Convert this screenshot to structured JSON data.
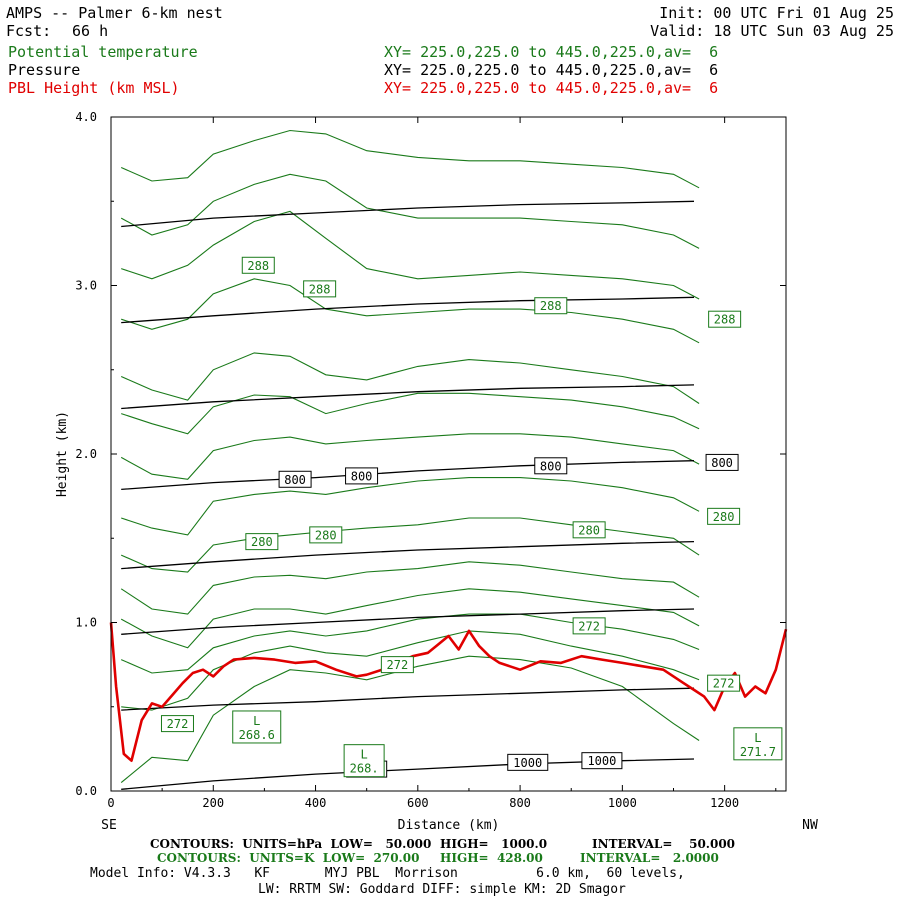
{
  "header": {
    "title": "AMPS -- Palmer 6-km nest",
    "fcst_label": "Fcst:",
    "fcst_value": "66 h",
    "init": "Init: 00 UTC Fri 01 Aug 25",
    "valid": "Valid: 18 UTC Sun 03 Aug 25",
    "fields": [
      {
        "name": "Potential temperature",
        "xy": "XY= 225.0,225.0 to 445.0,225.0,av=  6",
        "color": "#1a7a1a"
      },
      {
        "name": "Pressure",
        "xy": "XY= 225.0,225.0 to 445.0,225.0,av=  6",
        "color": "#000000"
      },
      {
        "name": "PBL Height (km MSL)",
        "xy": "XY= 225.0,225.0 to 445.0,225.0,av=  6",
        "color": "#e00000"
      }
    ]
  },
  "chart_data": {
    "type": "line",
    "xlabel": "Distance (km)",
    "ylabel": "Height (km)",
    "xlim": [
      0,
      1320
    ],
    "ylim": [
      0,
      4
    ],
    "x_ticks": [
      0,
      200,
      400,
      600,
      800,
      1000,
      1200
    ],
    "x_tick_labels": [
      "0",
      "200",
      "400",
      "600",
      "800",
      "1000",
      "1200"
    ],
    "y_ticks": [
      0,
      1,
      2,
      3,
      4
    ],
    "y_tick_labels": [
      "0.0",
      "1.0",
      "2.0",
      "3.0",
      "4.0"
    ],
    "left_end_label": "SE",
    "right_end_label": "NW",
    "pressure_contours": {
      "color": "#000000",
      "x": [
        20,
        200,
        400,
        600,
        800,
        1000,
        1140
      ],
      "lines": [
        {
          "label": "1000",
          "y": [
            0.01,
            0.06,
            0.1,
            0.13,
            0.16,
            0.18,
            0.19
          ]
        },
        {
          "y": [
            0.48,
            0.51,
            0.53,
            0.56,
            0.58,
            0.6,
            0.61
          ]
        },
        {
          "y": [
            0.93,
            0.97,
            1.0,
            1.03,
            1.05,
            1.07,
            1.08
          ]
        },
        {
          "y": [
            1.32,
            1.36,
            1.4,
            1.43,
            1.45,
            1.47,
            1.48
          ]
        },
        {
          "label": "800",
          "y": [
            1.79,
            1.83,
            1.86,
            1.9,
            1.93,
            1.95,
            1.96
          ]
        },
        {
          "y": [
            2.27,
            2.31,
            2.34,
            2.37,
            2.39,
            2.4,
            2.41
          ]
        },
        {
          "y": [
            2.78,
            2.82,
            2.86,
            2.89,
            2.91,
            2.92,
            2.93
          ]
        },
        {
          "y": [
            3.35,
            3.4,
            3.43,
            3.46,
            3.48,
            3.49,
            3.5
          ]
        }
      ],
      "labels": [
        {
          "text": "1000",
          "x": 500,
          "y": 0.13
        },
        {
          "text": "1000",
          "x": 815,
          "y": 0.17
        },
        {
          "text": "1000",
          "x": 960,
          "y": 0.18
        },
        {
          "text": "800",
          "x": 360,
          "y": 1.85
        },
        {
          "text": "800",
          "x": 490,
          "y": 1.87
        },
        {
          "text": "800",
          "x": 860,
          "y": 1.93
        },
        {
          "text": "800",
          "x": 1195,
          "y": 1.95
        }
      ]
    },
    "theta_contours": {
      "color": "#1a7a1a",
      "x": [
        20,
        80,
        150,
        200,
        280,
        350,
        420,
        500,
        600,
        700,
        800,
        900,
        1000,
        1100,
        1150
      ],
      "lines": [
        {
          "y": [
            0.05,
            0.2,
            0.18,
            0.45,
            0.62,
            0.72,
            0.7,
            0.66,
            0.74,
            0.8,
            0.78,
            0.73,
            0.62,
            0.4,
            0.3
          ]
        },
        {
          "y": [
            0.5,
            0.48,
            0.55,
            0.72,
            0.82,
            0.86,
            0.82,
            0.8,
            0.88,
            0.95,
            0.93,
            0.86,
            0.8,
            0.72,
            0.66
          ]
        },
        {
          "y": [
            0.78,
            0.7,
            0.72,
            0.85,
            0.92,
            0.95,
            0.92,
            0.95,
            1.02,
            1.05,
            1.05,
            1.0,
            0.96,
            0.9,
            0.84
          ]
        },
        {
          "y": [
            1.02,
            0.92,
            0.85,
            1.02,
            1.08,
            1.08,
            1.05,
            1.1,
            1.16,
            1.2,
            1.18,
            1.14,
            1.1,
            1.06,
            0.98
          ]
        },
        {
          "y": [
            1.2,
            1.08,
            1.05,
            1.22,
            1.27,
            1.28,
            1.26,
            1.3,
            1.32,
            1.36,
            1.34,
            1.3,
            1.26,
            1.24,
            1.15
          ]
        },
        {
          "y": [
            1.4,
            1.32,
            1.3,
            1.46,
            1.5,
            1.52,
            1.54,
            1.56,
            1.58,
            1.62,
            1.62,
            1.58,
            1.54,
            1.5,
            1.4
          ]
        },
        {
          "y": [
            1.62,
            1.56,
            1.52,
            1.72,
            1.76,
            1.78,
            1.76,
            1.8,
            1.84,
            1.86,
            1.86,
            1.84,
            1.8,
            1.74,
            1.66
          ]
        },
        {
          "y": [
            1.98,
            1.88,
            1.85,
            2.02,
            2.08,
            2.1,
            2.06,
            2.08,
            2.1,
            2.12,
            2.12,
            2.1,
            2.06,
            2.02,
            1.94
          ]
        },
        {
          "y": [
            2.24,
            2.18,
            2.12,
            2.28,
            2.35,
            2.34,
            2.24,
            2.3,
            2.36,
            2.36,
            2.34,
            2.32,
            2.28,
            2.22,
            2.15
          ]
        },
        {
          "y": [
            2.46,
            2.38,
            2.32,
            2.5,
            2.6,
            2.58,
            2.47,
            2.44,
            2.52,
            2.56,
            2.54,
            2.5,
            2.46,
            2.4,
            2.3
          ]
        },
        {
          "y": [
            2.8,
            2.74,
            2.8,
            2.95,
            3.04,
            3.0,
            2.86,
            2.82,
            2.84,
            2.86,
            2.86,
            2.84,
            2.8,
            2.74,
            2.66
          ]
        },
        {
          "y": [
            3.1,
            3.04,
            3.12,
            3.24,
            3.38,
            3.44,
            3.28,
            3.1,
            3.04,
            3.06,
            3.08,
            3.06,
            3.04,
            3.0,
            2.92
          ]
        },
        {
          "y": [
            3.4,
            3.3,
            3.36,
            3.5,
            3.6,
            3.66,
            3.62,
            3.46,
            3.4,
            3.4,
            3.4,
            3.38,
            3.36,
            3.3,
            3.22
          ]
        },
        {
          "y": [
            3.7,
            3.62,
            3.64,
            3.78,
            3.86,
            3.92,
            3.9,
            3.8,
            3.76,
            3.74,
            3.74,
            3.72,
            3.7,
            3.66,
            3.58
          ]
        }
      ],
      "labels": [
        {
          "text": "272",
          "x": 130,
          "y": 0.4
        },
        {
          "text": "272",
          "x": 560,
          "y": 0.75
        },
        {
          "text": "272",
          "x": 935,
          "y": 0.98
        },
        {
          "text": "280",
          "x": 295,
          "y": 1.48
        },
        {
          "text": "280",
          "x": 420,
          "y": 1.52
        },
        {
          "text": "280",
          "x": 935,
          "y": 1.55
        },
        {
          "text": "288",
          "x": 288,
          "y": 3.12
        },
        {
          "text": "288",
          "x": 408,
          "y": 2.98
        },
        {
          "text": "288",
          "x": 860,
          "y": 2.88
        },
        {
          "text": "288",
          "x": 1200,
          "y": 2.8
        },
        {
          "text": "280",
          "x": 1198,
          "y": 1.63
        },
        {
          "text": "272",
          "x": 1198,
          "y": 0.64
        }
      ],
      "lows": [
        {
          "letter": "L",
          "value": "268.6",
          "x": 285,
          "y": 0.38
        },
        {
          "letter": "L",
          "value": "268.",
          "x": 495,
          "y": 0.18
        },
        {
          "letter": "L",
          "value": "271.7",
          "x": 1265,
          "y": 0.28
        }
      ]
    },
    "pbl_height": {
      "color": "#e00000",
      "x": [
        0,
        10,
        25,
        40,
        60,
        80,
        100,
        120,
        140,
        160,
        180,
        200,
        220,
        240,
        280,
        320,
        360,
        400,
        440,
        480,
        500,
        530,
        560,
        590,
        620,
        640,
        660,
        680,
        700,
        720,
        740,
        760,
        780,
        800,
        840,
        880,
        920,
        960,
        1000,
        1040,
        1080,
        1100,
        1120,
        1140,
        1160,
        1180,
        1200,
        1220,
        1240,
        1260,
        1280,
        1300,
        1320
      ],
      "y": [
        1.0,
        0.62,
        0.22,
        0.18,
        0.42,
        0.52,
        0.5,
        0.57,
        0.64,
        0.7,
        0.72,
        0.68,
        0.74,
        0.78,
        0.79,
        0.78,
        0.76,
        0.77,
        0.72,
        0.68,
        0.69,
        0.72,
        0.76,
        0.8,
        0.82,
        0.87,
        0.92,
        0.84,
        0.95,
        0.86,
        0.8,
        0.76,
        0.74,
        0.72,
        0.77,
        0.76,
        0.8,
        0.78,
        0.76,
        0.74,
        0.72,
        0.68,
        0.64,
        0.6,
        0.56,
        0.48,
        0.62,
        0.7,
        0.56,
        0.62,
        0.58,
        0.72,
        0.96
      ]
    }
  },
  "footer": {
    "line1_left": "CONTOURS:  UNITS=hPa  LOW=   50.000",
    "line1_mid": "HIGH=   1000.0",
    "line1_right": "INTERVAL=    50.000",
    "line2_left": "CONTOURS:  UNITS=K  LOW=  270.00",
    "line2_mid": "HIGH=  428.00",
    "line2_right": "INTERVAL=   2.0000",
    "line3": "Model Info: V4.3.3   KF       MYJ PBL  Morrison          6.0 km,  60 levels,",
    "line4": "LW: RRTM SW: Goddard DIFF: simple KM: 2D Smagor"
  }
}
